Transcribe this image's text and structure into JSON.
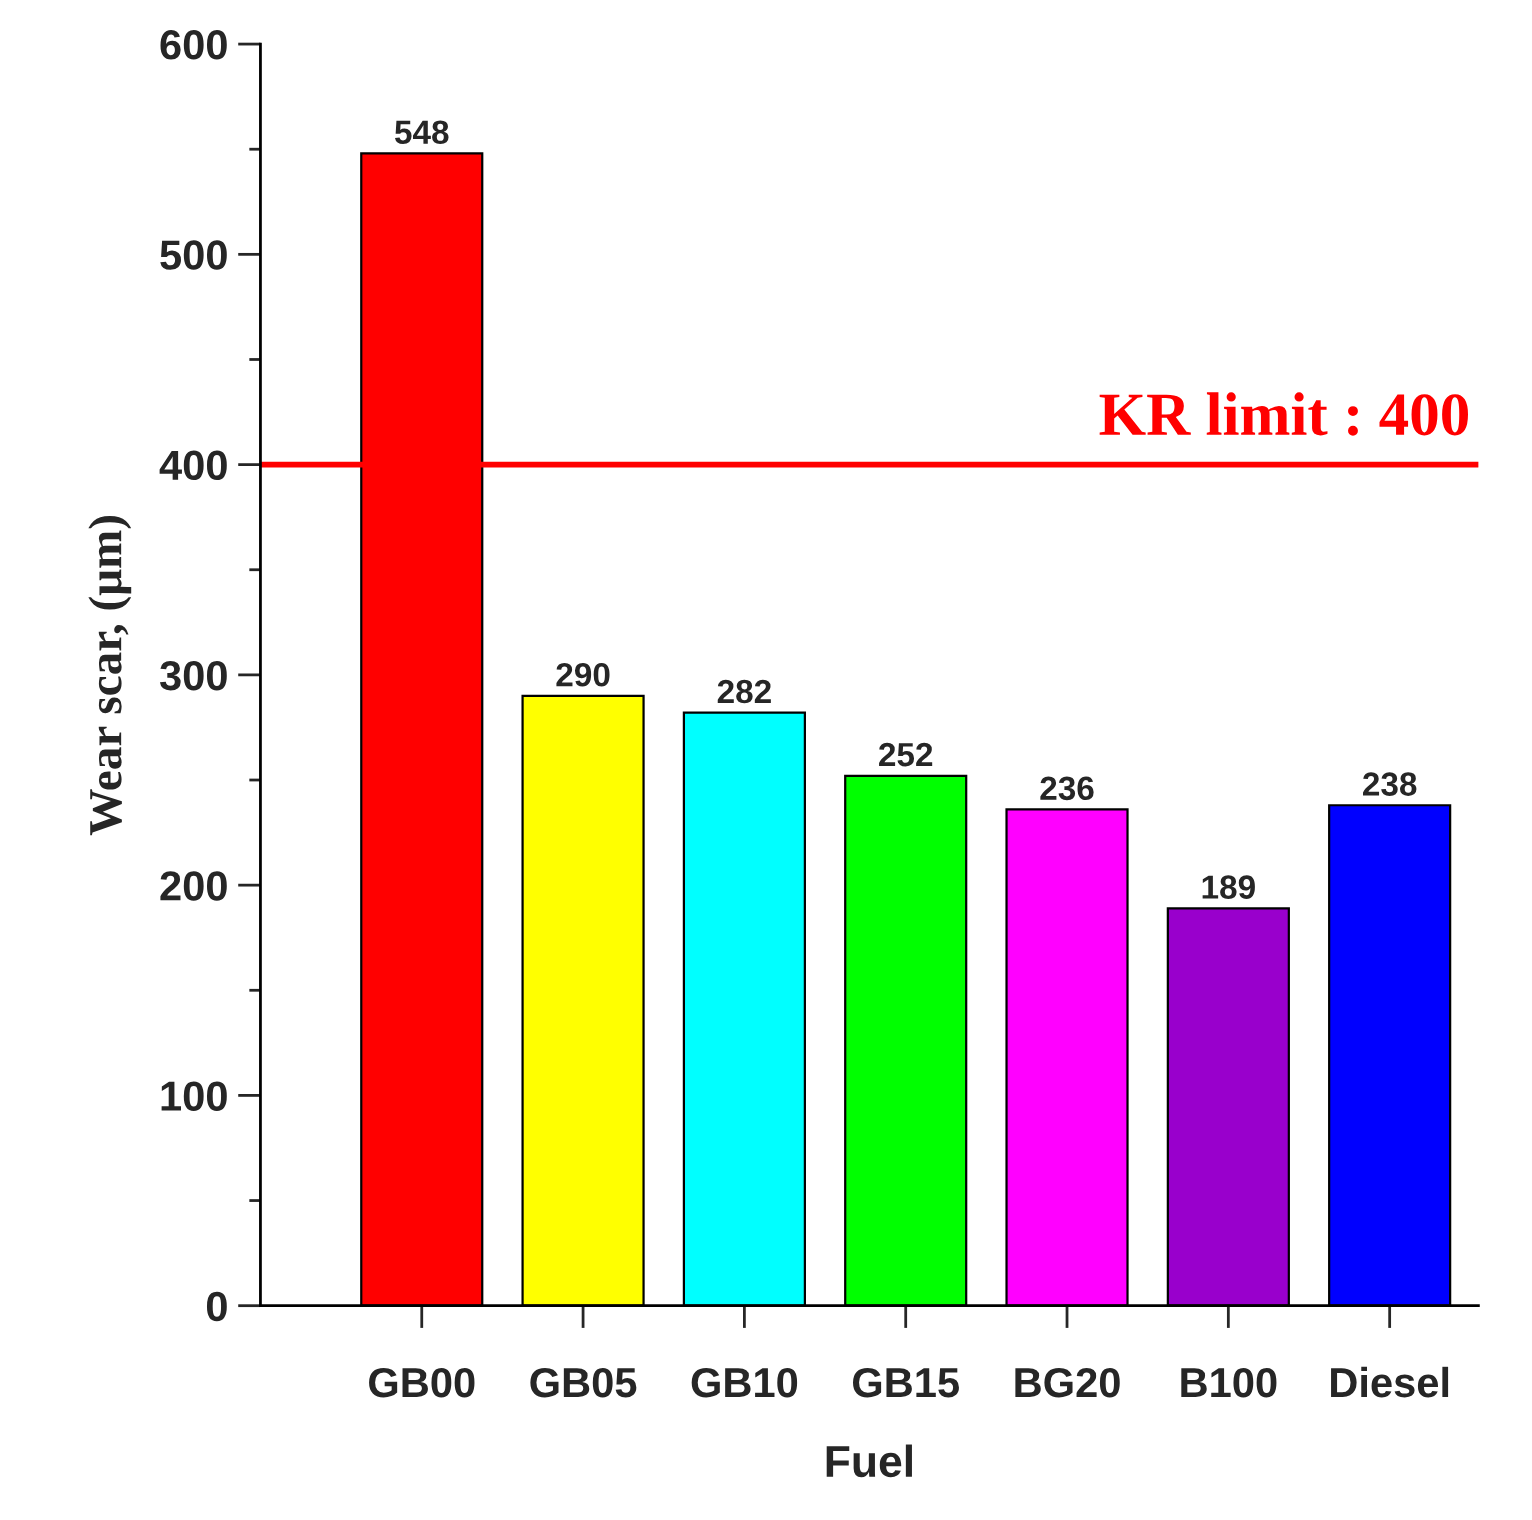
{
  "chart_data": {
    "type": "bar",
    "xlabel": "Fuel",
    "ylabel": "Wear scar, (μm)",
    "categories": [
      "GB00",
      "GB05",
      "GB10",
      "GB15",
      "BG20",
      "B100",
      "Diesel"
    ],
    "values": [
      548,
      290,
      282,
      252,
      236,
      189,
      238
    ],
    "colors": [
      "#ff0000",
      "#ffff00",
      "#00ffff",
      "#00ff00",
      "#ff00ff",
      "#9900cc",
      "#0000ff"
    ],
    "ylim": [
      0,
      600
    ],
    "yticks": [
      0,
      {
        "value": 50,
        "label": null
      },
      100,
      {
        "value": 150,
        "label": null
      },
      200,
      {
        "value": 250,
        "label": null
      },
      300,
      {
        "value": 350,
        "label": null
      },
      400,
      {
        "value": 450,
        "label": null
      },
      500,
      {
        "value": 550,
        "label": null
      },
      600
    ],
    "ref_lines": [
      {
        "axis": "y",
        "value": 400,
        "label": "KR limit : 400",
        "color": "#ff0000"
      }
    ],
    "data_labels": true,
    "grid": false,
    "legend": false
  }
}
